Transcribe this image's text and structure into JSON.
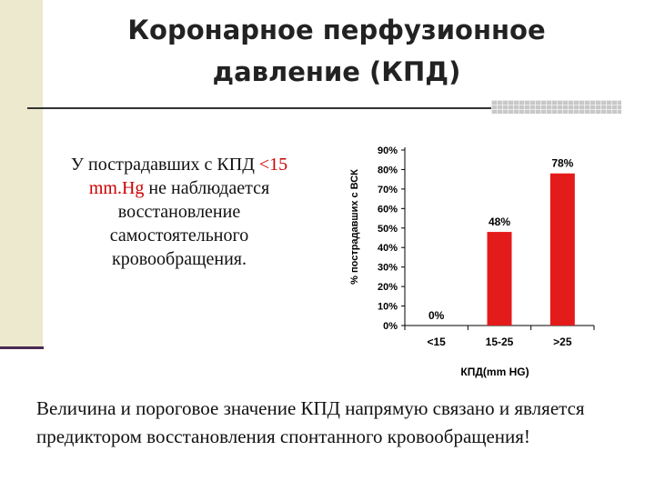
{
  "slide": {
    "title_line1": "Коронарное перфузионное",
    "title_line2": "давление (КПД)",
    "left_text": {
      "part1": "У пострадавших с КПД ",
      "highlight": "<15 mm.Hg",
      "part2": " не наблюдается восстановление самостоятельного кровообращения."
    },
    "bottom_text": "Величина и пороговое значение КПД напрямую связано и является предиктором восстановления спонтанного кровообращения!"
  },
  "colors": {
    "bar": "#e41b1b",
    "left_bar": "#ece9cf",
    "highlight": "#cc0000"
  },
  "chart_data": {
    "type": "bar",
    "categories": [
      "<15",
      "15-25",
      ">25"
    ],
    "values": [
      0,
      48,
      78
    ],
    "data_labels": [
      "0%",
      "48%",
      "78%"
    ],
    "ylabel": "% пострадавших с ВСК",
    "xlabel": "КПД(mm HG)",
    "ylim": [
      0,
      90
    ],
    "yticks": [
      "0%",
      "10%",
      "20%",
      "30%",
      "40%",
      "50%",
      "60%",
      "70%",
      "80%",
      "90%"
    ],
    "grid": false
  }
}
